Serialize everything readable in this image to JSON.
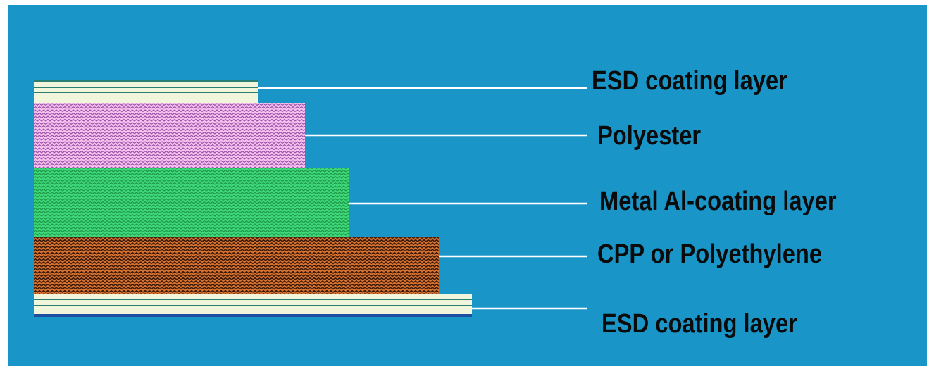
{
  "diagram": {
    "colors": {
      "background": "#1a95c7",
      "leader_line": "#ffffff",
      "label_text": "#0b0b0b",
      "esd_fill": "#f0f5dc",
      "esd_line": "#2a7f74",
      "esd_bottom_base": "#1e4fa0",
      "polyester_fill": "#f5c2ef",
      "polyester_zigzag": "#9a4fa6",
      "metal_fill": "#3fd97c",
      "metal_zigzag": "#1f9a4a",
      "cpp_fill": "#d8722f",
      "cpp_zigzag": "#3a1a0a"
    },
    "layers": [
      {
        "id": "esd-top",
        "label": "ESD coating layer"
      },
      {
        "id": "polyester",
        "label": "Polyester"
      },
      {
        "id": "metal",
        "label": "Metal Al-coating layer"
      },
      {
        "id": "cpp",
        "label": "CPP or Polyethylene"
      },
      {
        "id": "esd-bottom",
        "label": "ESD coating layer"
      }
    ]
  }
}
